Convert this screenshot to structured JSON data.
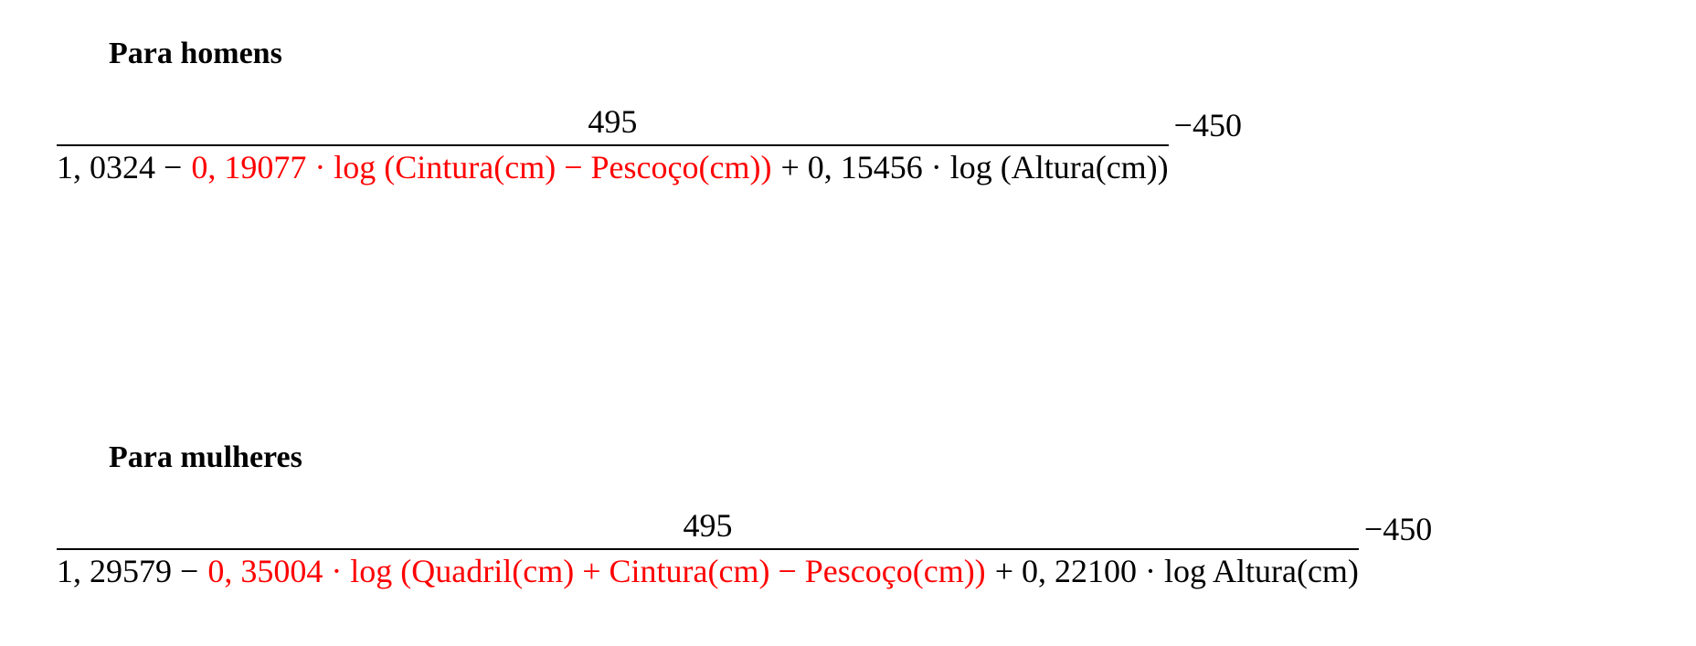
{
  "sections": [
    {
      "heading": "Para homens",
      "numerator": "495",
      "denominator": [
        {
          "text": "1, 0324 −",
          "color": "#000000"
        },
        {
          "text": "0, 19077 · log (Cintura(cm) − Pescoço(cm))",
          "color": "#ff0000"
        },
        {
          "text": "+ 0, 15456 · log (Altura(cm))",
          "color": "#000000"
        }
      ],
      "suffix": "−450"
    },
    {
      "heading": "Para mulheres",
      "numerator": "495",
      "denominator": [
        {
          "text": "1, 29579 −",
          "color": "#000000"
        },
        {
          "text": "0, 35004 · log (Quadril(cm) + Cintura(cm) − Pescoço(cm))",
          "color": "#ff0000"
        },
        {
          "text": "+ 0, 22100 · log Altura(cm)",
          "color": "#000000"
        }
      ],
      "suffix": "−450"
    }
  ]
}
